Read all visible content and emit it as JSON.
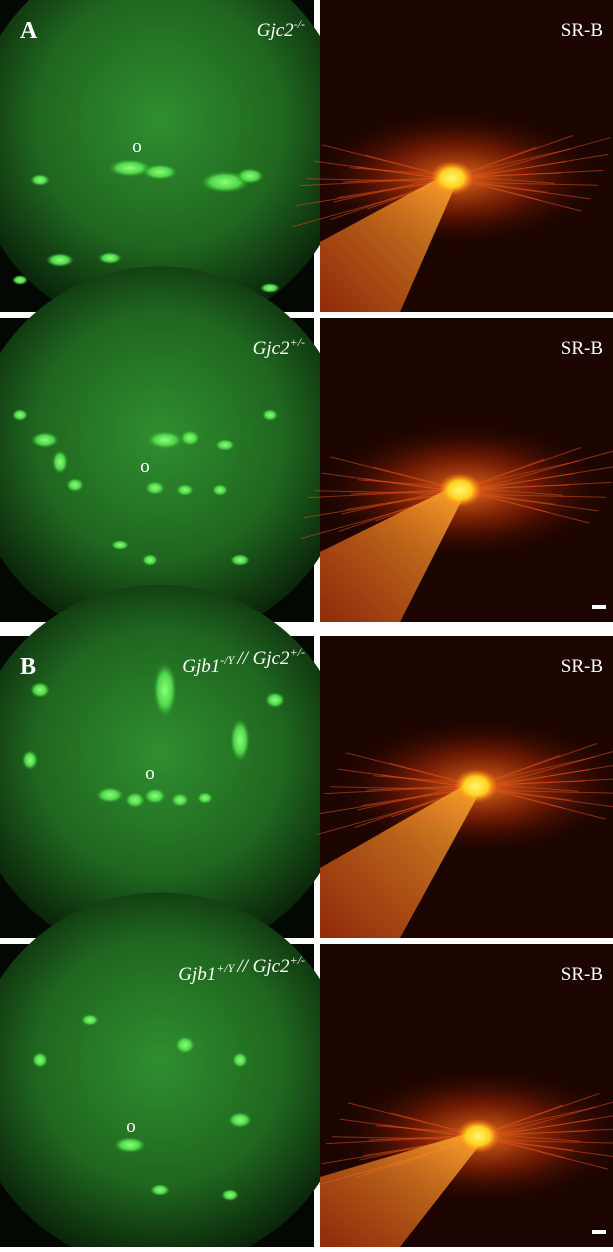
{
  "panels": [
    {
      "label": "A",
      "rows": [
        {
          "genotype": [
            {
              "text": "Gjc2",
              "sup": "-/-"
            }
          ],
          "cell_marker": "o",
          "dye": "SR-B"
        },
        {
          "genotype": [
            {
              "text": "Gjc2",
              "sup": "+/-"
            }
          ],
          "cell_marker": "o",
          "dye": "SR-B"
        }
      ]
    },
    {
      "label": "B",
      "rows": [
        {
          "genotype": [
            {
              "text": "Gjb1",
              "sup": "-/Y"
            },
            {
              "text": "// Gjc2",
              "sup": "+/-"
            }
          ],
          "cell_marker": "o",
          "dye": "SR-B"
        },
        {
          "genotype": [
            {
              "text": "Gjb1",
              "sup": "+/Y"
            },
            {
              "text": "// Gjc2",
              "sup": "+/-"
            }
          ],
          "cell_marker": "o",
          "dye": "SR-B"
        }
      ]
    }
  ]
}
